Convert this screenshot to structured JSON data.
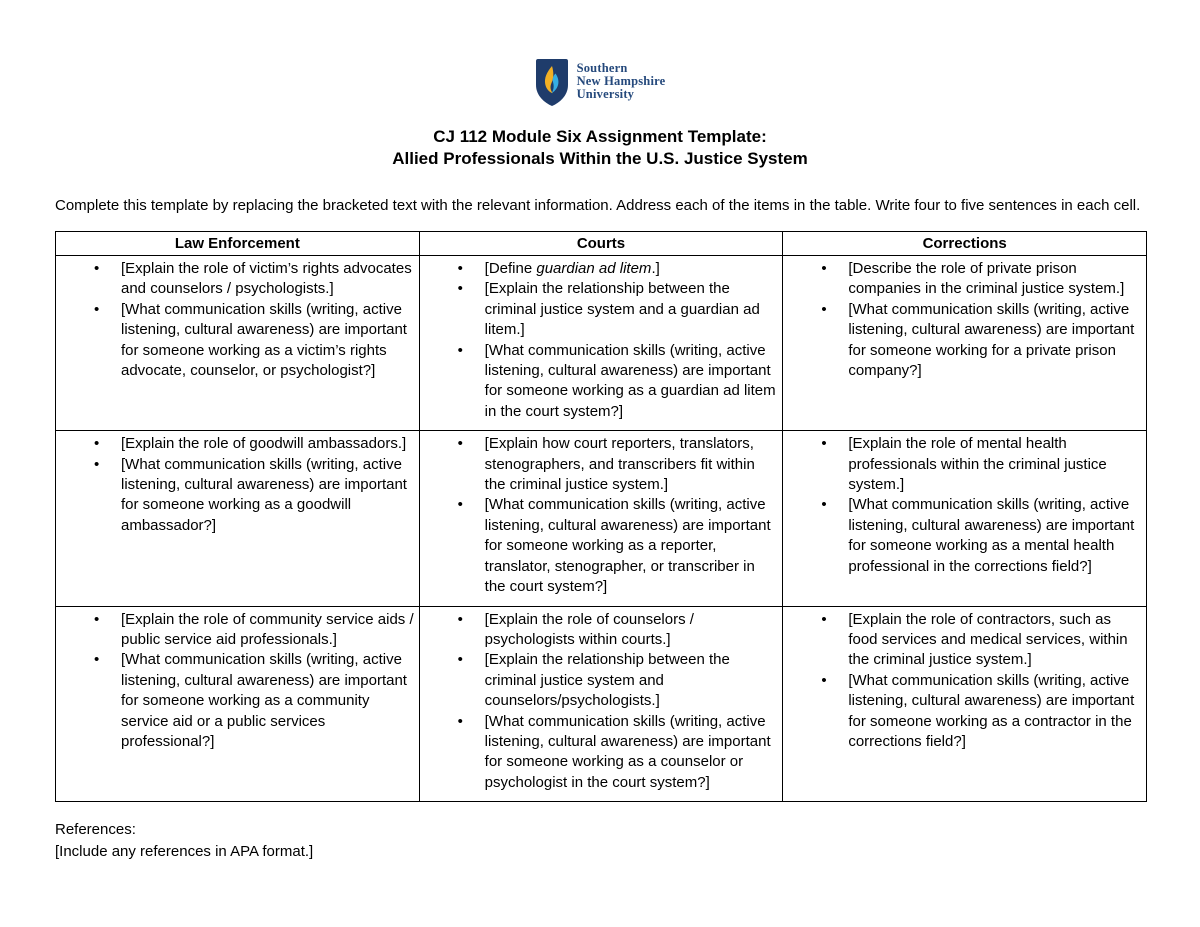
{
  "logo": {
    "line1": "Southern",
    "line2": "New Hampshire",
    "line3": "University"
  },
  "colors": {
    "shield_navy": "#1f3c6b",
    "flame_gold": "#f2b025",
    "flame_blue": "#35aee3",
    "logo_text": "#25497c"
  },
  "header": {
    "title_line1": "CJ 112 Module Six Assignment Template:",
    "title_line2": "Allied Professionals Within the U.S. Justice System"
  },
  "intro": "Complete this template by replacing the bracketed text with the relevant information. Address each of the items in the table. Write four to five sentences in each cell.",
  "table": {
    "columns": [
      "Law Enforcement",
      "Courts",
      "Corrections"
    ],
    "rows": [
      {
        "cells": [
          [
            "[Explain the role of victim’s rights advocates and counselors / psychologists.]",
            "[What communication skills (writing, active listening, cultural awareness) are important for someone working as a victim’s rights advocate, counselor, or psychologist?]"
          ],
          [
            "[Define *guardian ad litem*.]",
            "[Explain the relationship between the criminal justice system and a guardian ad litem.]",
            "[What communication skills (writing, active listening, cultural awareness) are important for someone working as a guardian ad litem in the court system?]"
          ],
          [
            "[Describe the role of private prison companies in the criminal justice system.]",
            "[What communication skills (writing, active listening, cultural awareness) are important for someone working for a private prison company?]"
          ]
        ]
      },
      {
        "cells": [
          [
            "[Explain the role of goodwill ambassadors.]",
            "[What communication skills (writing, active listening, cultural awareness) are important for someone working as a goodwill ambassador?]"
          ],
          [
            "[Explain how court reporters, translators, stenographers, and transcribers fit within the criminal justice system.]",
            "[What communication skills (writing, active listening, cultural awareness) are important for someone working as a reporter, translator, stenographer, or transcriber in the court system?]"
          ],
          [
            "[Explain the role of mental health professionals within the criminal justice system.]",
            "[What communication skills (writing, active listening, cultural awareness) are important for someone working as a mental health professional in the corrections field?]"
          ]
        ]
      },
      {
        "cells": [
          [
            "[Explain the role of community service aids / public service aid professionals.]",
            "[What communication skills (writing, active listening, cultural awareness) are important for someone working as a community service aid or a public services professional?]"
          ],
          [
            "[Explain the role of counselors / psychologists within courts.]",
            "[Explain the relationship between the criminal justice system and counselors/psychologists.]",
            "[What communication skills (writing, active listening, cultural awareness) are important for someone working as a counselor or psychologist in the court system?]"
          ],
          [
            "[Explain the role of contractors, such as food services and medical services, within the criminal justice system.]",
            "[What communication skills (writing, active listening, cultural awareness) are important for someone working as a contractor in the corrections field?]"
          ]
        ]
      }
    ]
  },
  "references": {
    "label": "References:",
    "placeholder": "[Include any references in APA format.]"
  }
}
